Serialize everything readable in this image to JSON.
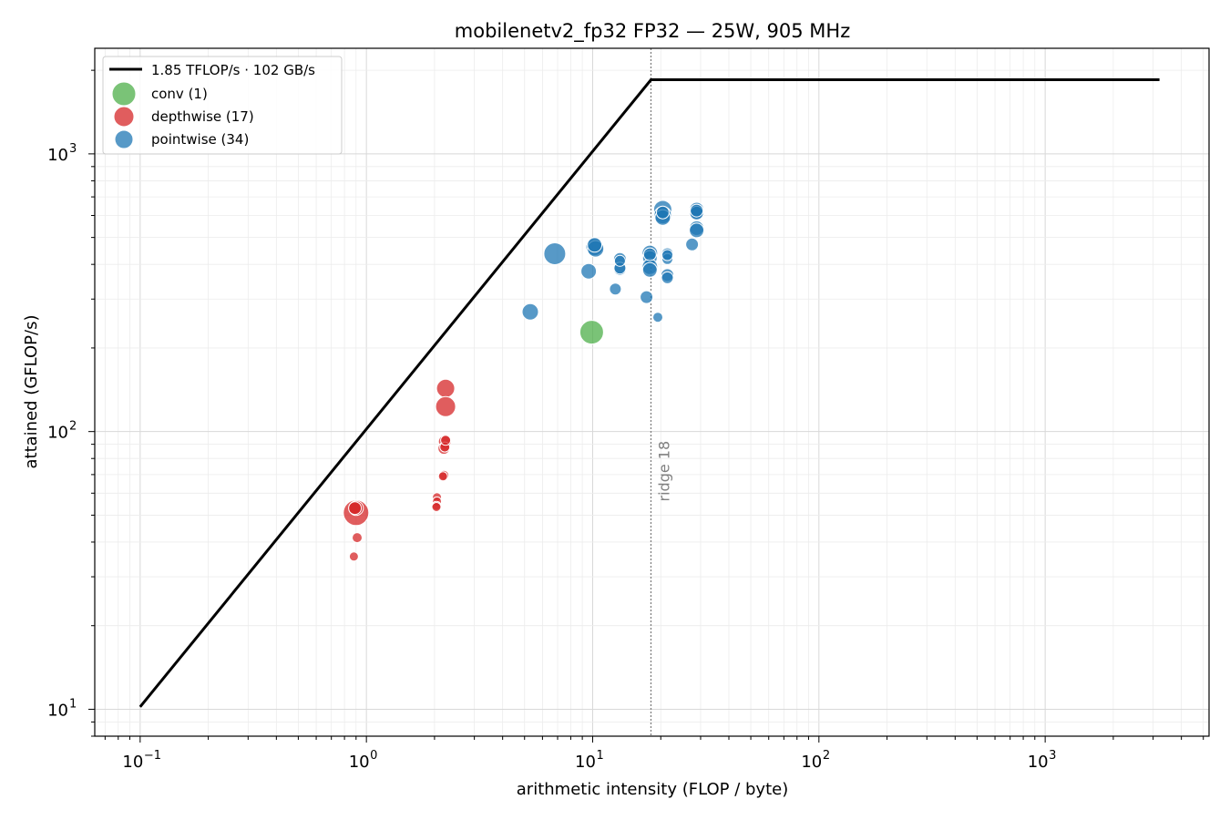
{
  "chart_data": {
    "type": "scatter",
    "title": "mobilenetv2_fp32 FP32 — 25W, 905 MHz",
    "xlabel": "arithmetic intensity  (FLOP / byte)",
    "ylabel": "attained  (GFLOP/s)",
    "x_scale": "log",
    "y_scale": "log",
    "xlim": [
      0.063,
      5300
    ],
    "ylim": [
      8.0,
      2400
    ],
    "x_ticks": [
      {
        "value": 0.1,
        "base": "10",
        "exp": "−1"
      },
      {
        "value": 1,
        "base": "10",
        "exp": "0"
      },
      {
        "value": 10,
        "base": "10",
        "exp": "1"
      },
      {
        "value": 100,
        "base": "10",
        "exp": "2"
      },
      {
        "value": 1000,
        "base": "10",
        "exp": "3"
      }
    ],
    "y_ticks": [
      {
        "value": 10,
        "base": "10",
        "exp": "1"
      },
      {
        "value": 100,
        "base": "10",
        "exp": "2"
      },
      {
        "value": 1000,
        "base": "10",
        "exp": "3"
      }
    ],
    "grid": true,
    "legend_position": "top-left",
    "roofline": {
      "label": "1.85 TFLOP/s · 102 GB/s",
      "color": "#000000",
      "points": [
        [
          0.1,
          10.2
        ],
        [
          18.1,
          1850
        ],
        [
          3200,
          1850
        ]
      ]
    },
    "ridge": {
      "x": 18.1,
      "label": "ridge 18",
      "color": "#808080"
    },
    "series": [
      {
        "name": "conv (1)",
        "color": "#4daf4a",
        "points": [
          {
            "x": 9.9,
            "y": 228,
            "size": 13
          }
        ]
      },
      {
        "name": "depthwise (17)",
        "color": "#d62728",
        "points": [
          {
            "x": 0.9,
            "y": 51,
            "size": 14
          },
          {
            "x": 0.9,
            "y": 53,
            "size": 8
          },
          {
            "x": 0.89,
            "y": 53,
            "size": 7
          },
          {
            "x": 0.91,
            "y": 41.5,
            "size": 5.5
          },
          {
            "x": 0.88,
            "y": 35.5,
            "size": 5
          },
          {
            "x": 2.24,
            "y": 143,
            "size": 10
          },
          {
            "x": 2.24,
            "y": 123,
            "size": 11
          },
          {
            "x": 2.22,
            "y": 92,
            "size": 7
          },
          {
            "x": 2.2,
            "y": 87,
            "size": 6.5
          },
          {
            "x": 2.2,
            "y": 69.5,
            "size": 5.5
          },
          {
            "x": 2.18,
            "y": 69,
            "size": 5
          },
          {
            "x": 2.05,
            "y": 58,
            "size": 5
          },
          {
            "x": 2.05,
            "y": 56,
            "size": 5
          },
          {
            "x": 2.04,
            "y": 54,
            "size": 5
          },
          {
            "x": 2.04,
            "y": 53.5,
            "size": 5
          },
          {
            "x": 2.22,
            "y": 88,
            "size": 5.5
          },
          {
            "x": 2.24,
            "y": 93,
            "size": 5.5
          }
        ]
      },
      {
        "name": "pointwise (34)",
        "color": "#1f77b4",
        "points": [
          {
            "x": 5.3,
            "y": 270,
            "size": 9
          },
          {
            "x": 6.8,
            "y": 437,
            "size": 12
          },
          {
            "x": 9.6,
            "y": 378,
            "size": 8.5
          },
          {
            "x": 10.2,
            "y": 462,
            "size": 9.5
          },
          {
            "x": 10.3,
            "y": 455,
            "size": 9
          },
          {
            "x": 12.6,
            "y": 326,
            "size": 6.5
          },
          {
            "x": 13.2,
            "y": 418,
            "size": 7
          },
          {
            "x": 13.2,
            "y": 385,
            "size": 7
          },
          {
            "x": 13.2,
            "y": 388,
            "size": 6.5
          },
          {
            "x": 17.3,
            "y": 305,
            "size": 7
          },
          {
            "x": 17.9,
            "y": 440,
            "size": 8.5
          },
          {
            "x": 17.9,
            "y": 422,
            "size": 8
          },
          {
            "x": 17.9,
            "y": 392,
            "size": 8.5
          },
          {
            "x": 17.9,
            "y": 382,
            "size": 8
          },
          {
            "x": 17.9,
            "y": 435,
            "size": 7
          },
          {
            "x": 19.4,
            "y": 258,
            "size": 5.5
          },
          {
            "x": 20.4,
            "y": 630,
            "size": 10
          },
          {
            "x": 20.4,
            "y": 602,
            "size": 9.5
          },
          {
            "x": 20.4,
            "y": 590,
            "size": 8.5
          },
          {
            "x": 21.4,
            "y": 437,
            "size": 6.5
          },
          {
            "x": 21.4,
            "y": 418,
            "size": 6
          },
          {
            "x": 21.4,
            "y": 366,
            "size": 7
          },
          {
            "x": 21.4,
            "y": 358,
            "size": 6.5
          },
          {
            "x": 21.4,
            "y": 432,
            "size": 6
          },
          {
            "x": 27.5,
            "y": 472,
            "size": 7
          },
          {
            "x": 28.8,
            "y": 630,
            "size": 8
          },
          {
            "x": 28.8,
            "y": 618,
            "size": 8
          },
          {
            "x": 28.8,
            "y": 612,
            "size": 7.5
          },
          {
            "x": 28.8,
            "y": 540,
            "size": 8
          },
          {
            "x": 28.8,
            "y": 530,
            "size": 8
          },
          {
            "x": 28.8,
            "y": 625,
            "size": 7
          },
          {
            "x": 20.4,
            "y": 615,
            "size": 7
          },
          {
            "x": 13.2,
            "y": 412,
            "size": 6
          },
          {
            "x": 10.2,
            "y": 470,
            "size": 8
          }
        ]
      }
    ]
  }
}
